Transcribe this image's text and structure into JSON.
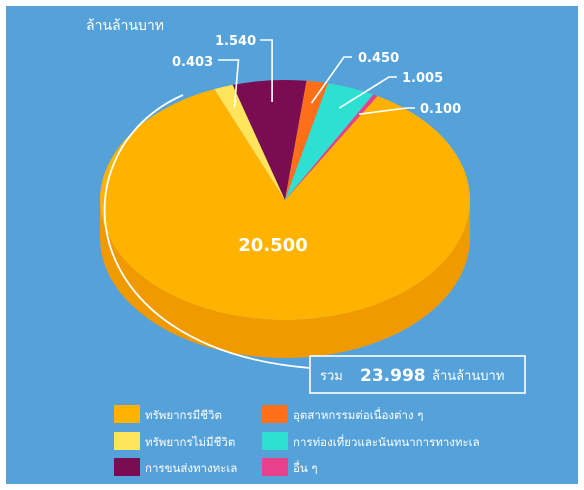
{
  "chart_data": {
    "type": "pie",
    "style": "3d",
    "unit_label": "ล้านล้านบาท",
    "categories": [
      "ทรัพยากรมีชีวิต",
      "ทรัพยากรไม่มีชีวิต",
      "การขนส่งทางทะเล",
      "อุตสาหกรรมต่อเนื่องต่าง ๆ",
      "การท่องเที่ยวและนันทนาการทางทะเล",
      "อื่น ๆ"
    ],
    "values": [
      20.5,
      0.403,
      1.54,
      0.45,
      1.005,
      0.1
    ],
    "value_labels": [
      "20.500",
      "0.403",
      "1.540",
      "0.450",
      "1.005",
      "0.100"
    ],
    "colors": [
      "#FFB300",
      "#FFE45C",
      "#7A0C52",
      "#FF6F1A",
      "#2EE0D2",
      "#E8408A"
    ],
    "side_colors": [
      "#F09A00",
      "#E5C940",
      "#5C083D",
      "#D85510",
      "#1FB8AC",
      "#B82C6C"
    ],
    "total_prefix": "รวม",
    "total_value": "23.998",
    "total_unit": "ล้านล้านบาท",
    "legend_placement": "bottom"
  },
  "theme": {
    "background": "#55A2DA",
    "text": "#FFFFFF"
  }
}
